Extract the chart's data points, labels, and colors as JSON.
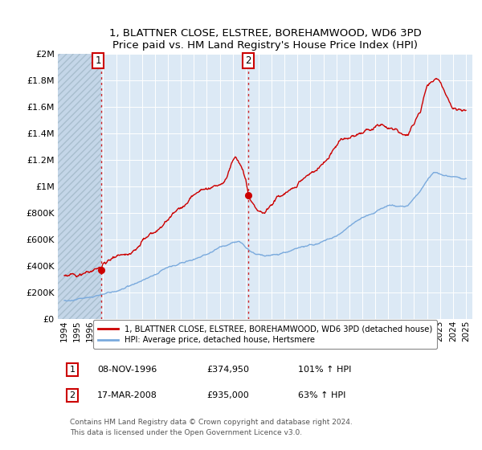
{
  "title": "1, BLATTNER CLOSE, ELSTREE, BOREHAMWOOD, WD6 3PD",
  "subtitle": "Price paid vs. HM Land Registry's House Price Index (HPI)",
  "background_color": "#dce9f5",
  "ylim": [
    0,
    2000000
  ],
  "yticks": [
    0,
    200000,
    400000,
    600000,
    800000,
    1000000,
    1200000,
    1400000,
    1600000,
    1800000,
    2000000
  ],
  "ytick_labels": [
    "£0",
    "£200K",
    "£400K",
    "£600K",
    "£800K",
    "£1M",
    "£1.2M",
    "£1.4M",
    "£1.6M",
    "£1.8M",
    "£2M"
  ],
  "xlim_start": 1993.5,
  "xlim_end": 2025.5,
  "xtick_years": [
    1994,
    1995,
    1996,
    1997,
    1998,
    1999,
    2000,
    2001,
    2002,
    2003,
    2004,
    2005,
    2006,
    2007,
    2008,
    2009,
    2010,
    2011,
    2012,
    2013,
    2014,
    2015,
    2016,
    2017,
    2018,
    2019,
    2020,
    2021,
    2022,
    2023,
    2024,
    2025
  ],
  "annotation1_year": 1996.85,
  "annotation1_value": 374950,
  "annotation2_year": 2008.21,
  "annotation2_value": 935000,
  "line1_color": "#cc0000",
  "line2_color": "#7aaadd",
  "legend1": "1, BLATTNER CLOSE, ELSTREE, BOREHAMWOOD, WD6 3PD (detached house)",
  "legend2": "HPI: Average price, detached house, Hertsmere",
  "footer": "Contains HM Land Registry data © Crown copyright and database right 2024.\nThis data is licensed under the Open Government Licence v3.0.",
  "table_row1_label": "1",
  "table_row1_date": "08-NOV-1996",
  "table_row1_price": "£374,950",
  "table_row1_hpi": "101% ↑ HPI",
  "table_row2_label": "2",
  "table_row2_date": "17-MAR-2008",
  "table_row2_price": "£935,000",
  "table_row2_hpi": "63% ↑ HPI"
}
